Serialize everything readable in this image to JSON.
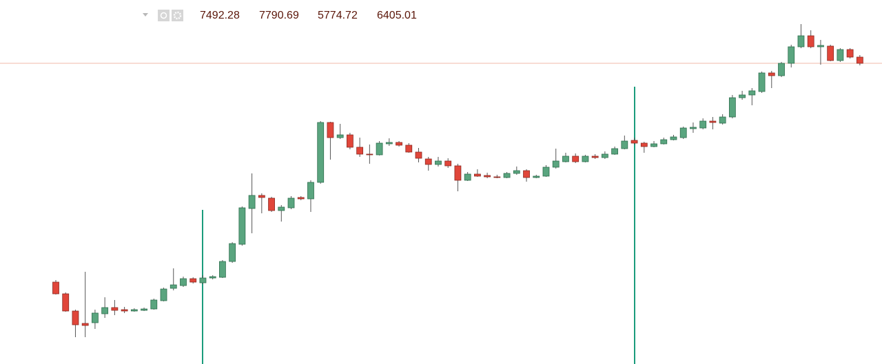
{
  "chart_data": {
    "type": "candlestick",
    "header_values": [
      7492.28,
      7790.69,
      5774.72,
      6405.01
    ],
    "ylim": [
      5884,
      8000
    ],
    "last_price_line": 7632,
    "up_color": "#5aa57f",
    "down_color": "#e0463a",
    "open": [
      6360,
      6292,
      6192,
      6120,
      6124,
      6176,
      6212,
      6200,
      6192,
      6196,
      6204,
      6252,
      6324,
      6340,
      6380,
      6356,
      6384,
      6388,
      6480,
      6580,
      6788,
      6864,
      6848,
      6776,
      6792,
      6852,
      6844,
      6940,
      7288,
      7200,
      7216,
      7144,
      7104,
      7100,
      7164,
      7172,
      7156,
      7116,
      7076,
      7044,
      7064,
      7036,
      6952,
      6988,
      6980,
      6972,
      6968,
      6992,
      7008,
      6968,
      6976,
      7028,
      7060,
      7092,
      7060,
      7092,
      7084,
      7104,
      7136,
      7184,
      7168,
      7148,
      7164,
      7188,
      7200,
      7252,
      7256,
      7296,
      7284,
      7320,
      7432,
      7448,
      7468,
      7576,
      7560,
      7632,
      7728,
      7792,
      7728,
      7732,
      7648,
      7712,
      7668
    ],
    "high": [
      6372,
      6300,
      6200,
      6420,
      6200,
      6272,
      6256,
      6216,
      6208,
      6212,
      6264,
      6328,
      6440,
      6392,
      6388,
      6400,
      6400,
      6488,
      6592,
      6800,
      6992,
      6876,
      6856,
      6808,
      6860,
      6860,
      6952,
      7296,
      7292,
      7280,
      7228,
      7200,
      7160,
      7180,
      7196,
      7180,
      7168,
      7140,
      7088,
      7088,
      7080,
      7048,
      7000,
      7016,
      6996,
      6984,
      7000,
      7032,
      7016,
      6984,
      7040,
      7136,
      7112,
      7108,
      7100,
      7104,
      7120,
      7148,
      7212,
      7200,
      7176,
      7180,
      7200,
      7216,
      7264,
      7288,
      7312,
      7320,
      7336,
      7448,
      7472,
      7488,
      7584,
      7588,
      7640,
      7740,
      7860,
      7824,
      7768,
      7740,
      7720,
      7720,
      7680
    ],
    "low": [
      6288,
      6188,
      6040,
      6040,
      6088,
      6152,
      6168,
      6180,
      6188,
      6192,
      6200,
      6248,
      6312,
      6332,
      6352,
      6348,
      6376,
      6384,
      6472,
      6572,
      6644,
      6760,
      6768,
      6712,
      6784,
      6836,
      6768,
      6932,
      7072,
      7192,
      7132,
      7088,
      7048,
      7096,
      7152,
      7148,
      7112,
      7056,
      7008,
      7032,
      7024,
      6888,
      6948,
      6972,
      6964,
      6964,
      6964,
      6984,
      6944,
      6964,
      6972,
      7020,
      7056,
      7052,
      7056,
      7076,
      7076,
      7100,
      7132,
      7160,
      7112,
      7144,
      7160,
      7184,
      7192,
      7228,
      7248,
      7248,
      7276,
      7312,
      7420,
      7388,
      7460,
      7488,
      7552,
      7608,
      7720,
      7720,
      7624,
      7644,
      7640,
      7660,
      7620
    ],
    "close": [
      6292,
      6192,
      6112,
      6108,
      6180,
      6212,
      6196,
      6192,
      6200,
      6204,
      6256,
      6320,
      6344,
      6380,
      6360,
      6384,
      6392,
      6480,
      6584,
      6792,
      6864,
      6852,
      6776,
      6796,
      6848,
      6844,
      6940,
      7288,
      7200,
      7216,
      7144,
      7104,
      7100,
      7168,
      7172,
      7156,
      7116,
      7080,
      7044,
      7064,
      7036,
      6952,
      6988,
      6976,
      6972,
      6968,
      6992,
      7008,
      6968,
      6976,
      7028,
      7064,
      7092,
      7060,
      7092,
      7084,
      7104,
      7136,
      7180,
      7168,
      7148,
      7164,
      7188,
      7204,
      7256,
      7260,
      7296,
      7288,
      7320,
      7432,
      7448,
      7472,
      7576,
      7560,
      7632,
      7728,
      7792,
      7728,
      7736,
      7648,
      7712,
      7668,
      7632
    ]
  }
}
